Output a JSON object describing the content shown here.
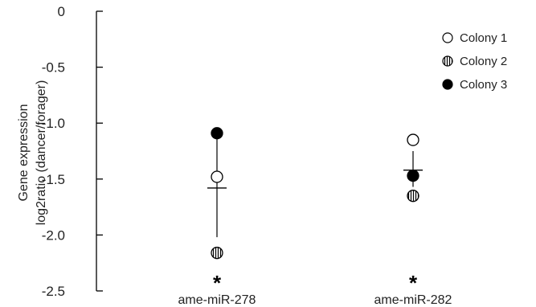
{
  "chart_data": {
    "type": "scatter",
    "ylabel_line1": "Gene expression",
    "ylabel_line2": "log2ratio (dancer/forager)",
    "ylim": [
      -2.5,
      0
    ],
    "yticks": [
      0,
      -0.5,
      -1.0,
      -1.5,
      -2.0,
      -2.5
    ],
    "ytick_labels": [
      "0",
      "-0.5",
      "-1.0",
      "-1.5",
      "-2.0",
      "-2.5"
    ],
    "categories": [
      "ame-miR-278",
      "ame-miR-282"
    ],
    "significance": [
      "*",
      "*"
    ],
    "legend_position": "top-right",
    "series": [
      {
        "name": "Colony 1",
        "marker": "open-circle",
        "values": [
          -1.48,
          -1.15
        ]
      },
      {
        "name": "Colony 2",
        "marker": "hatched-circle",
        "values": [
          -2.16,
          -1.65
        ]
      },
      {
        "name": "Colony 3",
        "marker": "filled-circle",
        "values": [
          -1.09,
          -1.47
        ]
      }
    ],
    "means": [
      -1.58,
      -1.42
    ],
    "errors": [
      {
        "low": -2.02,
        "high": -1.1
      },
      {
        "low": -1.57,
        "high": -1.25
      }
    ]
  }
}
